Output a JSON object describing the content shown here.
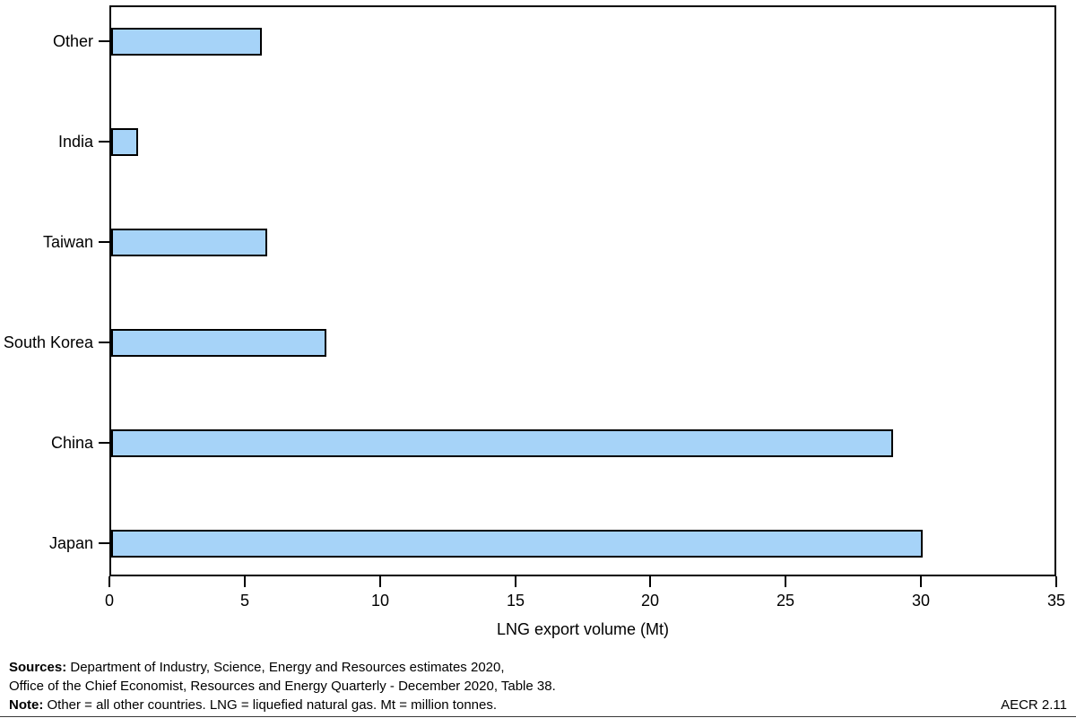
{
  "chart_data": {
    "type": "bar",
    "orientation": "horizontal",
    "title": "",
    "categories": [
      "Other",
      "India",
      "Taiwan",
      "South Korea",
      "China",
      "Japan"
    ],
    "values": [
      5.6,
      1.0,
      5.8,
      8.0,
      29.0,
      30.1
    ],
    "unit": "Mt",
    "xlabel": "LNG export volume (Mt)",
    "xlim": [
      0,
      35
    ],
    "xticks": [
      0,
      5,
      10,
      15,
      20,
      25,
      30,
      35
    ],
    "grid": false,
    "legend": false,
    "bar_color": "#A6D3F8",
    "bar_border_color": "#000000",
    "frame_color": "#000000"
  },
  "footer": {
    "sources_label": "Sources:",
    "sources_text": " Department of Industry, Science, Energy and Resources estimates 2020,",
    "sources_line2": "Office of the Chief Economist, Resources and Energy Quarterly - December 2020, Table 38.",
    "note_label": "Note:",
    "note_text": " Other = all other countries. LNG = liquefied natural gas. Mt = million tonnes.",
    "figure_ref": "AECR 2.11"
  }
}
